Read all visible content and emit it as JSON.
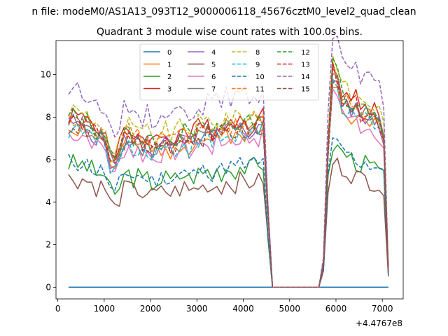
{
  "figure": {
    "suptitle": "n file: modeM0/AS1A13_093T12_9000006118_45676cztM0_level2_quad_clean",
    "title": "Quadrant 3 module wise count rates with 100.0s bins.",
    "x_offset_label": "+4.4767e8"
  },
  "chart_data": {
    "type": "line",
    "title": "Quadrant 3 module wise count rates with 100.0s bins.",
    "xlabel": "",
    "ylabel": "",
    "x_offset": 447670000,
    "xlim": [
      -40,
      7450
    ],
    "ylim": [
      -0.55,
      11.6
    ],
    "xticks": [
      0,
      1000,
      2000,
      3000,
      4000,
      5000,
      6000,
      7000
    ],
    "xtick_labels": [
      "0",
      "1000",
      "2000",
      "3000",
      "4000",
      "5000",
      "6000",
      "7000"
    ],
    "yticks": [
      0,
      2,
      4,
      6,
      8,
      10
    ],
    "ytick_labels": [
      "0",
      "2",
      "4",
      "6",
      "8",
      "10"
    ],
    "grid": false,
    "legend": {
      "placement": "top-center",
      "columns": 4
    },
    "x": [
      230,
      330,
      430,
      530,
      630,
      730,
      830,
      930,
      1030,
      1130,
      1230,
      1330,
      1430,
      1530,
      1630,
      1730,
      1830,
      1930,
      2030,
      2130,
      2230,
      2330,
      2430,
      2530,
      2630,
      2730,
      2830,
      2930,
      3030,
      3130,
      3230,
      3330,
      3430,
      3530,
      3630,
      3730,
      3830,
      3930,
      4030,
      4130,
      4230,
      4330,
      4430,
      4530,
      4630,
      4730,
      4830,
      4930,
      5030,
      5130,
      5230,
      5330,
      5430,
      5530,
      5630,
      5730,
      5830,
      5930,
      6030,
      6130,
      6230,
      6330,
      6430,
      6530,
      6630,
      6730,
      6830,
      6930,
      7030,
      7130
    ],
    "shape": {
      "normal": [
        1.0,
        1.01,
        0.99,
        1.0,
        0.98,
        0.96,
        0.92,
        0.93,
        0.9,
        0.78,
        0.72,
        0.82,
        0.9,
        0.92,
        0.88,
        0.9,
        0.86,
        0.88,
        0.84,
        0.86,
        0.87,
        0.89,
        0.86,
        0.88,
        0.9,
        0.92,
        0.88,
        0.9,
        0.93,
        0.92,
        0.95,
        0.91,
        0.95,
        0.93,
        0.97,
        0.96,
        0.95,
        0.98,
        0.97,
        0.96,
        0.99,
        0.97,
        1.0,
        0.45,
        0.0,
        0.0,
        0.0,
        0.0,
        0.0,
        0.0,
        0.0,
        0.0,
        0.0,
        0.0,
        0.0,
        0.15,
        0.85,
        1.3,
        1.28,
        1.15,
        1.12,
        1.08,
        1.1,
        1.05,
        1.06,
        1.04,
        1.03,
        1.0,
        0.92,
        0.1
      ],
      "low": [
        1.0,
        1.01,
        0.99,
        1.0,
        0.98,
        0.96,
        0.92,
        0.93,
        0.9,
        0.78,
        0.72,
        0.82,
        0.9,
        0.92,
        0.88,
        0.9,
        0.86,
        0.88,
        0.84,
        0.86,
        0.87,
        0.89,
        0.86,
        0.88,
        0.9,
        0.92,
        0.88,
        0.9,
        0.93,
        0.92,
        0.95,
        0.91,
        0.95,
        0.93,
        0.97,
        0.96,
        0.95,
        0.98,
        0.97,
        0.96,
        0.99,
        0.97,
        1.0,
        0.45,
        0.0,
        0.0,
        0.0,
        0.0,
        0.0,
        0.0,
        0.0,
        0.0,
        0.0,
        0.0,
        0.0,
        0.15,
        0.85,
        1.15,
        1.13,
        1.1,
        1.08,
        1.04,
        1.02,
        1.0,
        1.0,
        0.98,
        0.97,
        0.95,
        0.88,
        0.1
      ]
    },
    "series": [
      {
        "name": "0",
        "color": "#1f77b4",
        "dash": "solid",
        "level": 0.0,
        "shape": "normal",
        "seed": 1
      },
      {
        "name": "1",
        "color": "#ff7f0e",
        "dash": "solid",
        "level": 7.5,
        "shape": "normal",
        "seed": 2
      },
      {
        "name": "2",
        "color": "#2ca02c",
        "dash": "solid",
        "level": 5.8,
        "shape": "low",
        "seed": 3
      },
      {
        "name": "3",
        "color": "#d62728",
        "dash": "solid",
        "level": 8.1,
        "shape": "normal",
        "seed": 4
      },
      {
        "name": "4",
        "color": "#9467bd",
        "dash": "solid",
        "level": 7.6,
        "shape": "normal",
        "seed": 5
      },
      {
        "name": "5",
        "color": "#8c564b",
        "dash": "solid",
        "level": 5.1,
        "shape": "low",
        "seed": 6
      },
      {
        "name": "6",
        "color": "#e377c2",
        "dash": "solid",
        "level": 7.2,
        "shape": "normal",
        "seed": 7
      },
      {
        "name": "7",
        "color": "#7f7f7f",
        "dash": "solid",
        "level": 7.7,
        "shape": "normal",
        "seed": 8
      },
      {
        "name": "8",
        "color": "#bcbd22",
        "dash": "dashed",
        "level": 8.3,
        "shape": "normal",
        "seed": 9
      },
      {
        "name": "9",
        "color": "#17becf",
        "dash": "dashed",
        "level": 7.4,
        "shape": "normal",
        "seed": 10
      },
      {
        "name": "10",
        "color": "#1f77b4",
        "dash": "dashed",
        "level": 5.9,
        "shape": "low",
        "seed": 11
      },
      {
        "name": "11",
        "color": "#ff7f0e",
        "dash": "dashed",
        "level": 7.9,
        "shape": "normal",
        "seed": 12
      },
      {
        "name": "12",
        "color": "#2ca02c",
        "dash": "dashed",
        "level": 8.0,
        "shape": "normal",
        "seed": 13
      },
      {
        "name": "13",
        "color": "#d62728",
        "dash": "dashed",
        "level": 7.8,
        "shape": "normal",
        "seed": 14
      },
      {
        "name": "14",
        "color": "#9467bd",
        "dash": "dashed",
        "level": 9.3,
        "shape": "normal",
        "seed": 15
      },
      {
        "name": "15",
        "color": "#8c564b",
        "dash": "dashed",
        "level": 7.6,
        "shape": "normal",
        "seed": 16
      }
    ]
  }
}
